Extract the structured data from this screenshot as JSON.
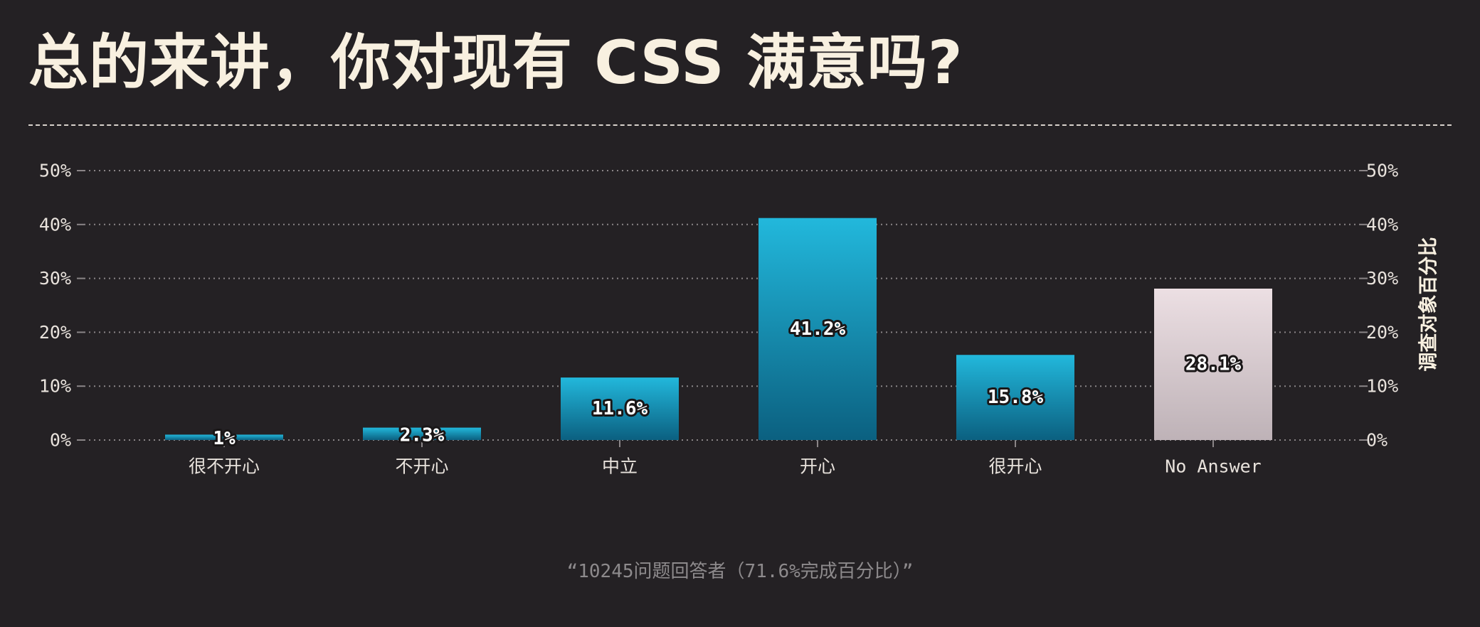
{
  "title": "总的来讲，你对现有 CSS 满意吗?",
  "footnote": "“10245问题回答者（71.6%完成百分比）”",
  "colors": {
    "background": "#242124",
    "bar_top": "#22b8dc",
    "bar_bottom": "#0b6080",
    "na_top": "#ecdfe3",
    "na_bottom": "#beb2b7",
    "axis_text": "#e8e2dc",
    "grid": "#8a8587"
  },
  "chart_data": {
    "type": "bar",
    "categories": [
      "很不开心",
      "不开心",
      "中立",
      "开心",
      "很开心",
      "No Answer"
    ],
    "values": [
      1,
      2.3,
      11.6,
      41.2,
      15.8,
      28.1
    ],
    "data_labels": [
      "1%",
      "2.3%",
      "11.6%",
      "41.2%",
      "15.8%",
      "28.1%"
    ],
    "highlight_category": "No Answer",
    "y_ticks": [
      "0%",
      "10%",
      "20%",
      "30%",
      "40%",
      "50%"
    ],
    "ylim": [
      0,
      50
    ],
    "ylabel": "调查对象百分比",
    "xlabel": "",
    "grid": true,
    "y_axis_both_sides": true
  }
}
